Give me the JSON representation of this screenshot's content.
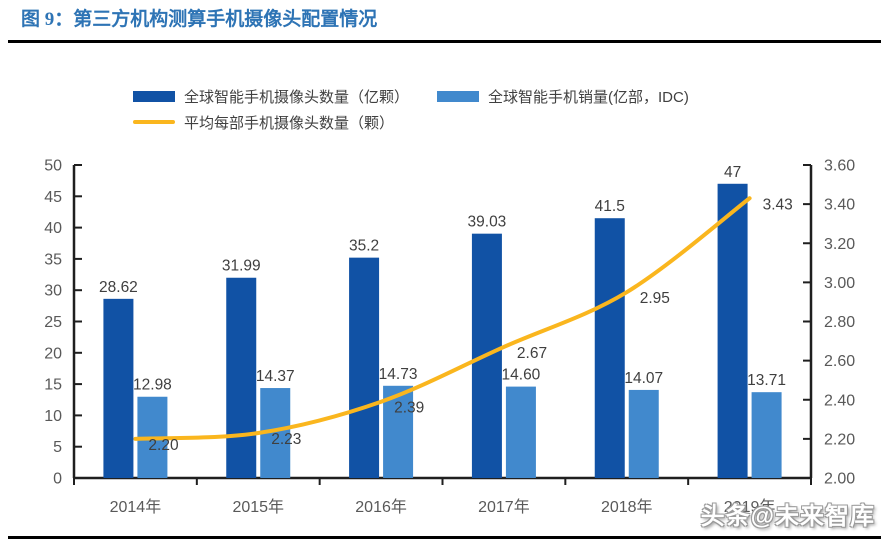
{
  "header": {
    "title": "图 9：第三方机构测算手机摄像头配置情况"
  },
  "legend": [
    {
      "label": "全球智能手机摄像头数量（亿颗）",
      "swatch": "bar",
      "color": "#1152A5"
    },
    {
      "label": "全球智能手机销量(亿部，IDC)",
      "swatch": "bar",
      "color": "#4189CD"
    },
    {
      "label": "平均每部手机摄像头数量（颗）",
      "swatch": "line",
      "color": "#FAB61E"
    }
  ],
  "watermark": "头条@未来智库",
  "colors": {
    "title": "#2E74B5",
    "axis_line": "#1F1F1F",
    "axis_text": "#595959",
    "data_label": "#3F3F3F",
    "bar_dark_blue": "#1152A5",
    "bar_light_blue": "#4189CD",
    "line_yellow": "#FAB61E"
  },
  "chart_data": {
    "type": "bar+line combo",
    "title": "第三方机构测算手机摄像头配置情况",
    "categories": [
      "2014年",
      "2015年",
      "2016年",
      "2017年",
      "2018年",
      "2019年"
    ],
    "series": [
      {
        "name": "全球智能手机摄像头数量（亿颗）",
        "type": "bar",
        "axis": "left",
        "color": "#1152A5",
        "values": [
          28.62,
          31.99,
          35.2,
          39.03,
          41.5,
          47
        ],
        "labels": [
          "28.62",
          "31.99",
          "35.2",
          "39.03",
          "41.5",
          "47"
        ]
      },
      {
        "name": "全球智能手机销量(亿部，IDC)",
        "type": "bar",
        "axis": "left",
        "color": "#4189CD",
        "values": [
          12.98,
          14.37,
          14.73,
          14.6,
          14.07,
          13.71
        ],
        "labels": [
          "12.98",
          "14.37",
          "14.73",
          "14.60",
          "14.07",
          "13.71"
        ]
      },
      {
        "name": "平均每部手机摄像头数量（颗）",
        "type": "line",
        "axis": "right",
        "color": "#FAB61E",
        "values": [
          2.2,
          2.23,
          2.39,
          2.67,
          2.95,
          3.43
        ],
        "labels": [
          "2.20",
          "2.23",
          "2.39",
          "2.67",
          "2.95",
          "3.43"
        ]
      }
    ],
    "left_axis": {
      "min": 0,
      "max": 50,
      "step": 5,
      "ticks": [
        "0",
        "5",
        "10",
        "15",
        "20",
        "25",
        "30",
        "35",
        "40",
        "45",
        "50"
      ]
    },
    "right_axis": {
      "min": 2.0,
      "max": 3.6,
      "step": 0.2,
      "ticks": [
        "2.00",
        "2.20",
        "2.40",
        "2.60",
        "2.80",
        "3.00",
        "3.20",
        "3.40",
        "3.60"
      ]
    },
    "grid": false,
    "legend_position": "top"
  }
}
